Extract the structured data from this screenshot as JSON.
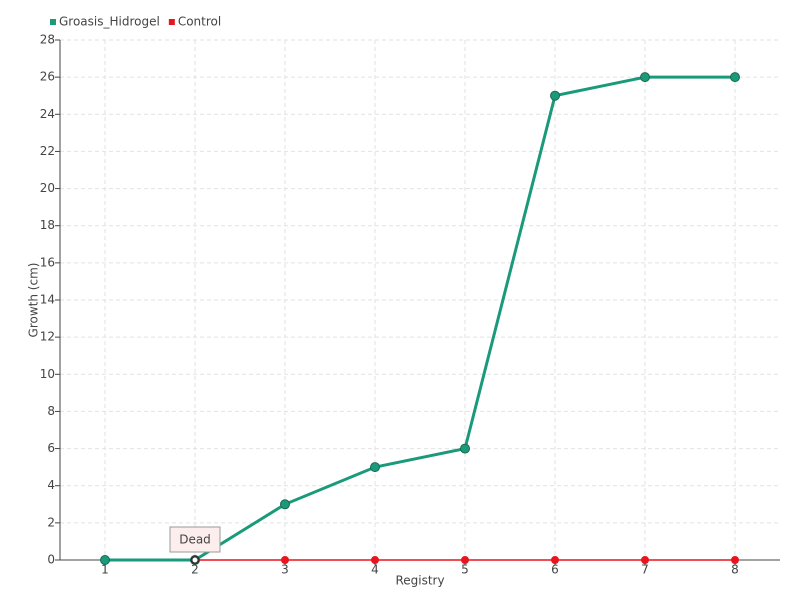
{
  "chart_data": {
    "type": "line",
    "x_label": "Registry",
    "y_label": "Growth (cm)",
    "x": [
      1,
      2,
      3,
      4,
      5,
      6,
      7,
      8
    ],
    "series": [
      {
        "name": "Groasis_Hidrogel",
        "color": "#1a9a7a",
        "values": [
          0,
          0,
          3,
          5,
          6,
          25,
          26,
          26
        ]
      },
      {
        "name": "Control",
        "color": "#e8141e",
        "values": [
          0,
          0,
          0,
          0,
          0,
          0,
          0,
          0
        ]
      }
    ],
    "xlim": [
      0.5,
      8.5
    ],
    "xticks": [
      1,
      2,
      3,
      4,
      5,
      6,
      7,
      8
    ],
    "ylim": [
      0,
      28
    ],
    "yticks": [
      0,
      2,
      4,
      6,
      8,
      10,
      12,
      14,
      16,
      18,
      20,
      22,
      24,
      26,
      28
    ],
    "grid": true,
    "annotations": [
      {
        "text": "Dead",
        "x": 2,
        "y": 0
      }
    ]
  }
}
